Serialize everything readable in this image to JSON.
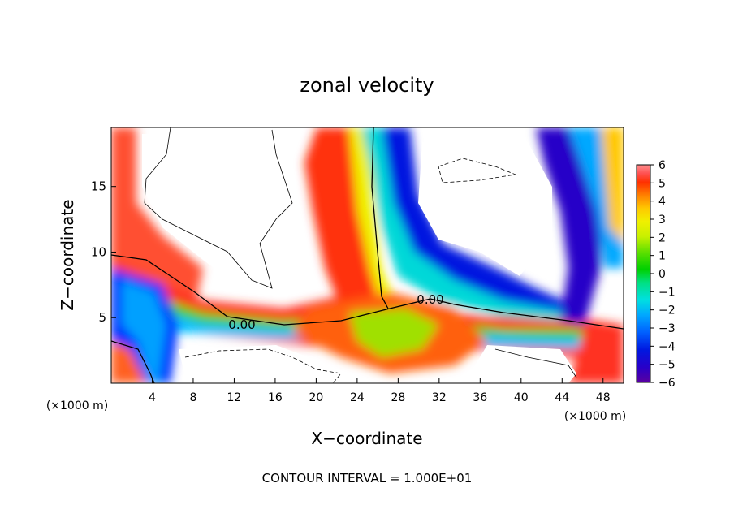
{
  "chart_data": {
    "type": "heatmap",
    "title": "zonal velocity",
    "xlabel": "X−coordinate",
    "ylabel": "Z−coordinate",
    "x_unit_left": "(×1000 m)",
    "x_unit_right": "(×1000 m)",
    "xlim": [
      0,
      50
    ],
    "ylim": [
      0,
      19.5
    ],
    "x_ticks": [
      4,
      8,
      12,
      16,
      20,
      24,
      28,
      32,
      36,
      40,
      44,
      48
    ],
    "y_ticks": [
      5,
      10,
      15
    ],
    "colorbar": {
      "ticks": [
        6,
        5,
        4,
        3,
        2,
        1,
        0,
        -1,
        -2,
        -3,
        -4,
        -5,
        -6
      ],
      "tick_labels": [
        "6",
        "5",
        "4",
        "3",
        "2",
        "1",
        "0",
        "−1",
        "−2",
        "−3",
        "−4",
        "−5",
        "−6"
      ],
      "range": [
        -6,
        6
      ],
      "colors": [
        "#5a00a0",
        "#2800c8",
        "#0018e0",
        "#0060ff",
        "#00a8ff",
        "#00e0e0",
        "#00e080",
        "#00d000",
        "#60e000",
        "#c8f000",
        "#f0f000",
        "#ffc800",
        "#ff8000",
        "#ff3000",
        "#ff5050",
        "#ff9090"
      ]
    },
    "contour_labels": [
      "0.00",
      "0.00"
    ],
    "footer": "CONTOUR INTERVAL = 1.000E+01",
    "grid": false,
    "legend": "colorbar-right"
  }
}
